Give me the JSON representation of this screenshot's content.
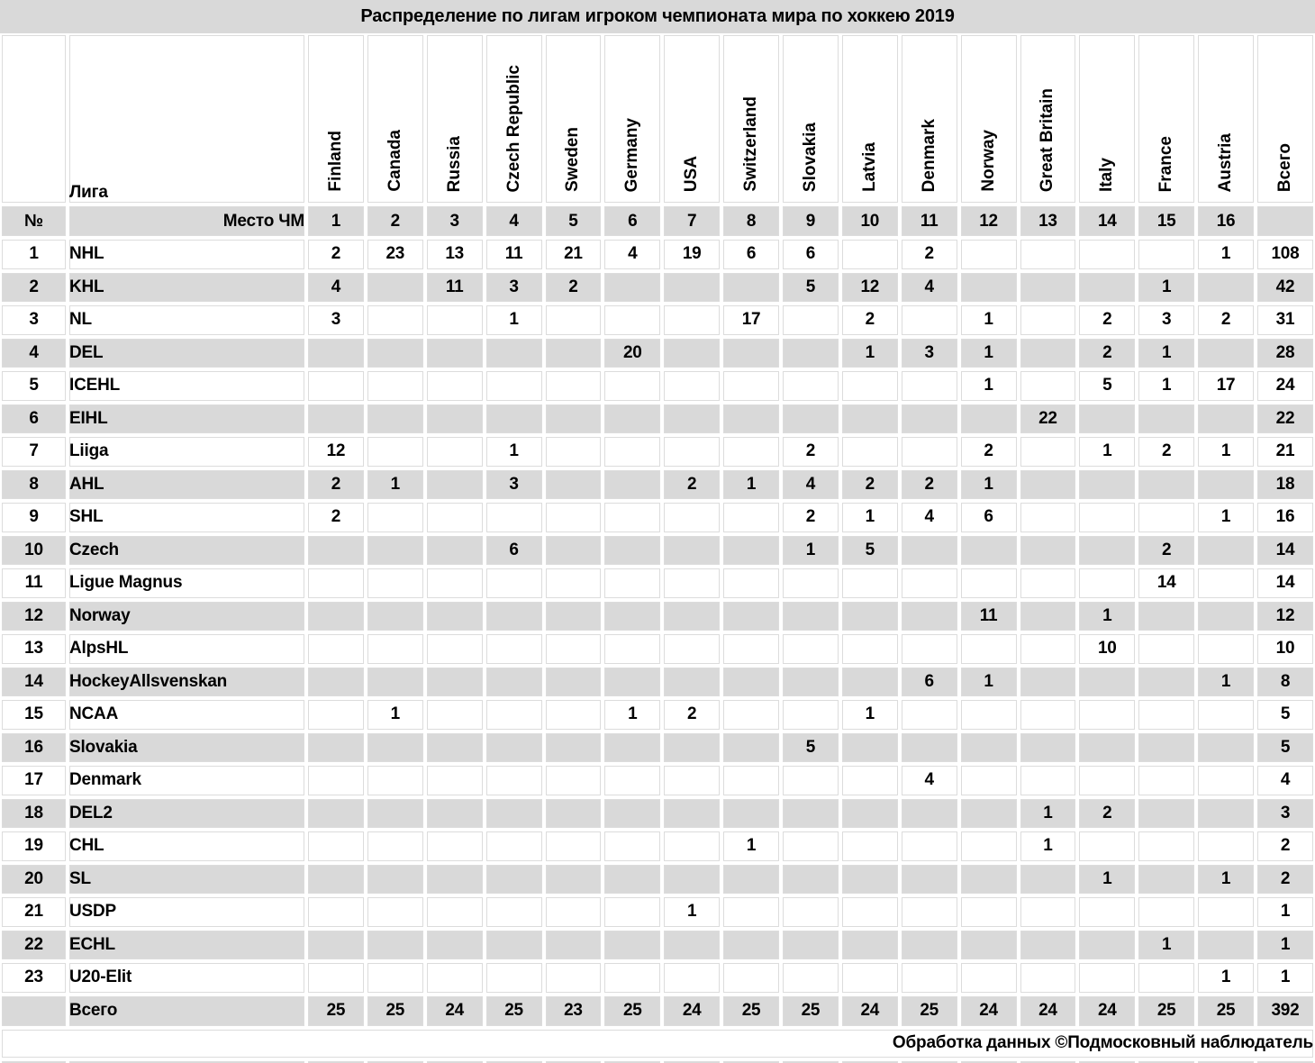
{
  "chart_data": {
    "type": "table",
    "title": "Распределение по лигам игроком чемпионата мира по хоккею 2019",
    "corner_label": "№",
    "league_column_label": "Лига",
    "place_row_label": "Место ЧМ",
    "columns": [
      "Finland",
      "Canada",
      "Russia",
      "Czech Republic",
      "Sweden",
      "Germany",
      "USA",
      "Switzerland",
      "Slovakia",
      "Latvia",
      "Denmark",
      "Norway",
      "Great Britain",
      "Italy",
      "France",
      "Austria",
      "Всего"
    ],
    "places": [
      "1",
      "2",
      "3",
      "4",
      "5",
      "6",
      "7",
      "8",
      "9",
      "10",
      "11",
      "12",
      "13",
      "14",
      "15",
      "16",
      ""
    ],
    "rows": [
      {
        "num": "1",
        "league": "NHL",
        "values": [
          "2",
          "23",
          "13",
          "11",
          "21",
          "4",
          "19",
          "6",
          "6",
          "",
          "2",
          "",
          "",
          "",
          "",
          "1",
          "108"
        ]
      },
      {
        "num": "2",
        "league": "KHL",
        "values": [
          "4",
          "",
          "11",
          "3",
          "2",
          "",
          "",
          "",
          "5",
          "12",
          "4",
          "",
          "",
          "",
          "1",
          "",
          "42"
        ]
      },
      {
        "num": "3",
        "league": "NL",
        "values": [
          "3",
          "",
          "",
          "1",
          "",
          "",
          "",
          "17",
          "",
          "2",
          "",
          "1",
          "",
          "2",
          "3",
          "2",
          "31"
        ]
      },
      {
        "num": "4",
        "league": "DEL",
        "values": [
          "",
          "",
          "",
          "",
          "",
          "20",
          "",
          "",
          "",
          "1",
          "3",
          "1",
          "",
          "2",
          "1",
          "",
          "28"
        ]
      },
      {
        "num": "5",
        "league": "ICEHL",
        "values": [
          "",
          "",
          "",
          "",
          "",
          "",
          "",
          "",
          "",
          "",
          "",
          "1",
          "",
          "5",
          "1",
          "17",
          "24"
        ]
      },
      {
        "num": "6",
        "league": "EIHL",
        "values": [
          "",
          "",
          "",
          "",
          "",
          "",
          "",
          "",
          "",
          "",
          "",
          "",
          "22",
          "",
          "",
          "",
          "22"
        ]
      },
      {
        "num": "7",
        "league": "Liiga",
        "values": [
          "12",
          "",
          "",
          "1",
          "",
          "",
          "",
          "",
          "2",
          "",
          "",
          "2",
          "",
          "1",
          "2",
          "1",
          "21"
        ]
      },
      {
        "num": "8",
        "league": "AHL",
        "values": [
          "2",
          "1",
          "",
          "3",
          "",
          "",
          "2",
          "1",
          "4",
          "2",
          "2",
          "1",
          "",
          "",
          "",
          "",
          "18"
        ]
      },
      {
        "num": "9",
        "league": "SHL",
        "values": [
          "2",
          "",
          "",
          "",
          "",
          "",
          "",
          "",
          "2",
          "1",
          "4",
          "6",
          "",
          "",
          "",
          "1",
          "16"
        ]
      },
      {
        "num": "10",
        "league": "Czech",
        "values": [
          "",
          "",
          "",
          "6",
          "",
          "",
          "",
          "",
          "1",
          "5",
          "",
          "",
          "",
          "",
          "2",
          "",
          "14"
        ]
      },
      {
        "num": "11",
        "league": "Ligue Magnus",
        "values": [
          "",
          "",
          "",
          "",
          "",
          "",
          "",
          "",
          "",
          "",
          "",
          "",
          "",
          "",
          "14",
          "",
          "14"
        ]
      },
      {
        "num": "12",
        "league": "Norway",
        "values": [
          "",
          "",
          "",
          "",
          "",
          "",
          "",
          "",
          "",
          "",
          "",
          "11",
          "",
          "1",
          "",
          "",
          "12"
        ]
      },
      {
        "num": "13",
        "league": "AlpsHL",
        "values": [
          "",
          "",
          "",
          "",
          "",
          "",
          "",
          "",
          "",
          "",
          "",
          "",
          "",
          "10",
          "",
          "",
          "10"
        ]
      },
      {
        "num": "14",
        "league": "HockeyAllsvenskan",
        "values": [
          "",
          "",
          "",
          "",
          "",
          "",
          "",
          "",
          "",
          "",
          "6",
          "1",
          "",
          "",
          "",
          "1",
          "8"
        ]
      },
      {
        "num": "15",
        "league": "NCAA",
        "values": [
          "",
          "1",
          "",
          "",
          "",
          "1",
          "2",
          "",
          "",
          "1",
          "",
          "",
          "",
          "",
          "",
          "",
          "5"
        ]
      },
      {
        "num": "16",
        "league": "Slovakia",
        "values": [
          "",
          "",
          "",
          "",
          "",
          "",
          "",
          "",
          "5",
          "",
          "",
          "",
          "",
          "",
          "",
          "",
          "5"
        ]
      },
      {
        "num": "17",
        "league": "Denmark",
        "values": [
          "",
          "",
          "",
          "",
          "",
          "",
          "",
          "",
          "",
          "",
          "4",
          "",
          "",
          "",
          "",
          "",
          "4"
        ]
      },
      {
        "num": "18",
        "league": "DEL2",
        "values": [
          "",
          "",
          "",
          "",
          "",
          "",
          "",
          "",
          "",
          "",
          "",
          "",
          "1",
          "2",
          "",
          "",
          "3"
        ]
      },
      {
        "num": "19",
        "league": "CHL",
        "values": [
          "",
          "",
          "",
          "",
          "",
          "",
          "",
          "1",
          "",
          "",
          "",
          "",
          "1",
          "",
          "",
          "",
          "2"
        ]
      },
      {
        "num": "20",
        "league": "SL",
        "values": [
          "",
          "",
          "",
          "",
          "",
          "",
          "",
          "",
          "",
          "",
          "",
          "",
          "",
          "1",
          "",
          "1",
          "2"
        ]
      },
      {
        "num": "21",
        "league": "USDP",
        "values": [
          "",
          "",
          "",
          "",
          "",
          "",
          "1",
          "",
          "",
          "",
          "",
          "",
          "",
          "",
          "",
          "",
          "1"
        ]
      },
      {
        "num": "22",
        "league": "ECHL",
        "values": [
          "",
          "",
          "",
          "",
          "",
          "",
          "",
          "",
          "",
          "",
          "",
          "",
          "",
          "",
          "1",
          "",
          "1"
        ]
      },
      {
        "num": "23",
        "league": "U20-Elit",
        "values": [
          "",
          "",
          "",
          "",
          "",
          "",
          "",
          "",
          "",
          "",
          "",
          "",
          "",
          "",
          "",
          "1",
          "1"
        ]
      }
    ],
    "totals": {
      "label": "Всего",
      "values": [
        "25",
        "25",
        "24",
        "25",
        "23",
        "25",
        "24",
        "25",
        "25",
        "24",
        "25",
        "24",
        "24",
        "24",
        "25",
        "25",
        "392"
      ]
    }
  },
  "footer": "Обработка данных ©Подмосковный наблюдатель",
  "colors": {
    "stripe_grey": "#d9d9d9",
    "grid_line": "#dcdcdc",
    "background": "#ffffff",
    "text": "#000000"
  }
}
